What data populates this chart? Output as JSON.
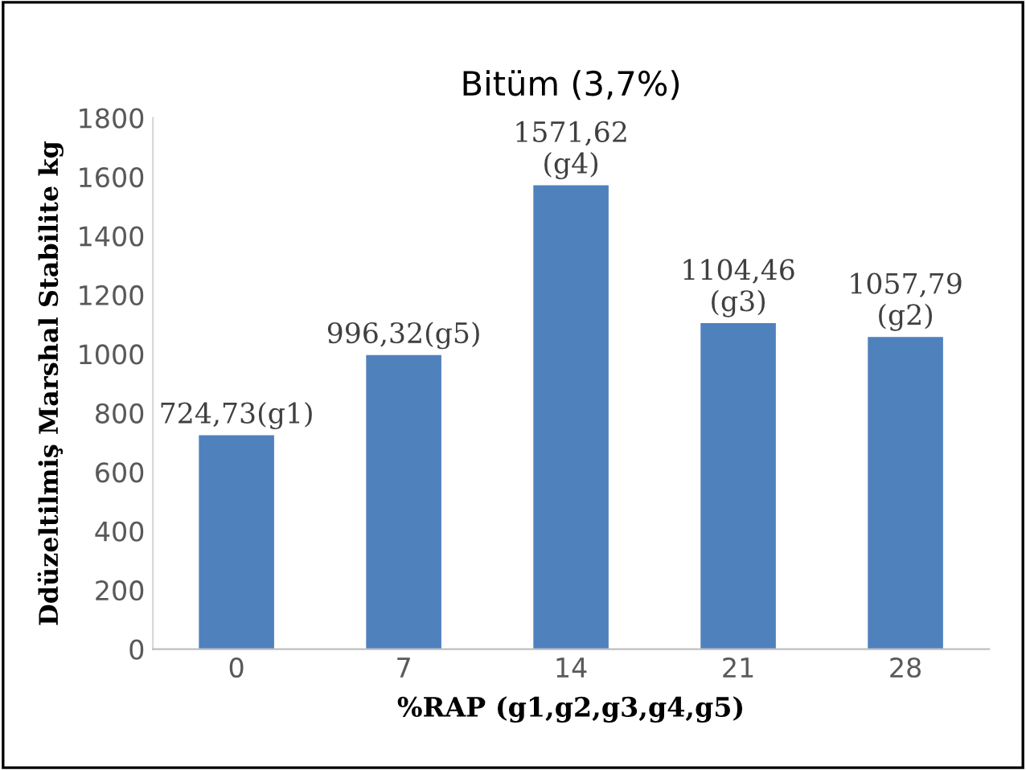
{
  "chart_data": {
    "type": "bar",
    "title": "Bitüm (3,7%)",
    "xlabel": "%RAP (g1,g2,g3,g4,g5)",
    "ylabel": "Ddüzeltilmiş Marshal Stabilite kg",
    "categories": [
      "0",
      "7",
      "14",
      "21",
      "28"
    ],
    "values": [
      724.73,
      996.32,
      1571.62,
      1104.46,
      1057.79
    ],
    "value_labels": [
      "724,73(g1)",
      "996,32(g5)",
      "1571,62\n(g4)",
      "1104,46\n(g3)",
      "1057,79\n(g2)"
    ],
    "color": "#4f81bd",
    "ylim": [
      0,
      1800
    ],
    "yticks": [
      0,
      200,
      400,
      600,
      800,
      1000,
      1200,
      1400,
      1600,
      1800
    ],
    "grid": false,
    "legend": false
  }
}
